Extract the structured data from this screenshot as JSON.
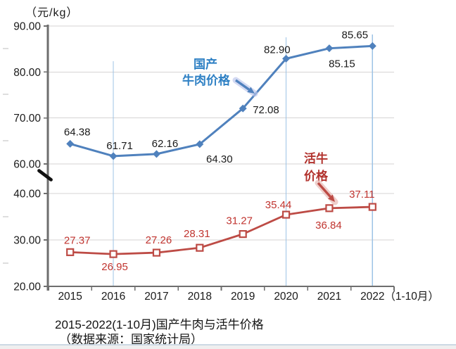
{
  "unit_label": "（元/kg）",
  "caption_line1": "2015-2022(1-10月)国产牛肉与活牛价格",
  "caption_line2": "（数据来源：国家统计局）",
  "chart_data": {
    "type": "line",
    "title": "2015-2022(1-10月)国产牛肉与活牛价格",
    "source_note": "数据来源：国家统计局",
    "unit": "元/kg",
    "categories": [
      "2015",
      "2016",
      "2017",
      "2018",
      "2019",
      "2020",
      "2021",
      "2022"
    ],
    "x_last_label_suffix": "（1-10月）",
    "grid": true,
    "legend_position": "inline-annotations",
    "y_axis": {
      "tick_values": [
        90,
        80,
        70,
        60,
        40,
        30,
        20
      ],
      "tick_labels": [
        "90.00",
        "80.00",
        "70.00",
        "60.00",
        "40.00",
        "30.00",
        "20.00"
      ],
      "has_break": true,
      "break_between": [
        40,
        60
      ],
      "ylim_lower_segment": [
        20,
        40
      ],
      "ylim_upper_segment": [
        60,
        90
      ]
    },
    "vertical_gridlines_categories": [
      "2016",
      "2020",
      "2022"
    ],
    "series": [
      {
        "name": "国产牛肉价格",
        "annotation_lines": [
          "国产",
          "牛肉价格"
        ],
        "values": [
          64.38,
          61.71,
          62.16,
          64.3,
          72.08,
          82.9,
          85.15,
          85.65
        ],
        "color": "#4f81bd",
        "annotation_color": "#2e80c4",
        "label_color": "#1a1a1a",
        "marker": "diamond"
      },
      {
        "name": "活牛价格",
        "annotation_lines": [
          "活牛",
          "价格"
        ],
        "values": [
          27.37,
          26.95,
          27.26,
          28.31,
          31.27,
          35.44,
          36.84,
          37.11
        ],
        "color": "#bd4b45",
        "annotation_color": "#b2322d",
        "label_color": "#c0342f",
        "marker": "square-open"
      }
    ]
  },
  "colors": {
    "axis": "#6e6e6e",
    "gridline": "#d6d3d3",
    "vertical_gridline": "#9dc3e6",
    "break_mark": "#111111"
  }
}
